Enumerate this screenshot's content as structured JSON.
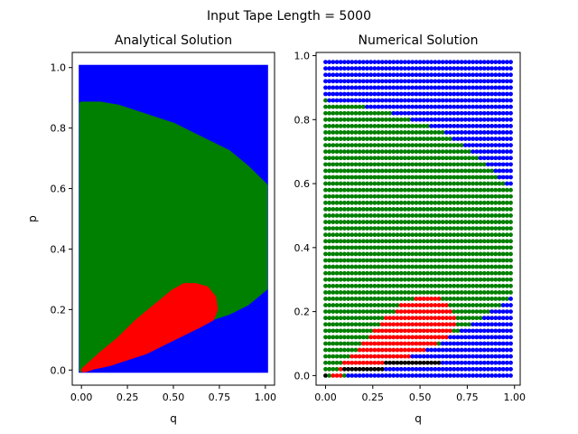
{
  "figure": {
    "suptitle": "Input Tape Length = 5000"
  },
  "chart_data": [
    {
      "type": "area",
      "title": "Analytical Solution",
      "xlabel": "q",
      "ylabel": "p",
      "xlim": [
        -0.05,
        1.05
      ],
      "ylim": [
        -0.05,
        1.05
      ],
      "xticks": [
        "0.00",
        "0.25",
        "0.50",
        "0.75",
        "1.00"
      ],
      "yticks": [
        "0.0",
        "0.2",
        "0.4",
        "0.6",
        "0.8",
        "1.0"
      ],
      "grid": false,
      "colors": {
        "background": "#0000ff",
        "mid": "#008000",
        "low": "#ff0000"
      },
      "regions": {
        "green_upper_boundary": {
          "q": [
            0.0,
            0.1,
            0.2,
            0.3,
            0.4,
            0.5,
            0.6,
            0.7,
            0.8,
            0.9,
            1.0
          ],
          "p": [
            0.88,
            0.88,
            0.87,
            0.85,
            0.83,
            0.81,
            0.78,
            0.75,
            0.72,
            0.67,
            0.61
          ]
        },
        "green_lower_boundary": {
          "q": [
            0.0,
            0.1,
            0.2,
            0.3,
            0.4,
            0.5,
            0.6,
            0.7,
            0.8,
            0.9,
            1.0
          ],
          "p": [
            0.0,
            0.02,
            0.04,
            0.06,
            0.08,
            0.11,
            0.14,
            0.17,
            0.19,
            0.22,
            0.27
          ]
        },
        "red_boundary": {
          "q": [
            0.01,
            0.1,
            0.2,
            0.3,
            0.4,
            0.5,
            0.56,
            0.62,
            0.68,
            0.72,
            0.73,
            0.71,
            0.65,
            0.55,
            0.45,
            0.35,
            0.25,
            0.15,
            0.07,
            0.02
          ],
          "p": [
            0.0,
            0.05,
            0.1,
            0.16,
            0.21,
            0.26,
            0.28,
            0.28,
            0.27,
            0.24,
            0.2,
            0.17,
            0.15,
            0.12,
            0.09,
            0.06,
            0.04,
            0.02,
            0.01,
            0.0
          ]
        }
      }
    },
    {
      "type": "scatter",
      "title": "Numerical Solution",
      "xlabel": "q",
      "ylabel": "",
      "xlim": [
        -0.05,
        1.03
      ],
      "ylim": [
        -0.03,
        1.01
      ],
      "xticks": [
        "0.00",
        "0.25",
        "0.50",
        "0.75",
        "1.00"
      ],
      "yticks": [
        "0.0",
        "0.2",
        "0.4",
        "0.6",
        "0.8",
        "1.0"
      ],
      "grid": false,
      "grid_step": 0.02,
      "grid_range": [
        0.0,
        0.98
      ],
      "colors": {
        "background": "#0000ff",
        "mid": "#008000",
        "low": "#ff0000",
        "zero": "#000000"
      },
      "regions": {
        "green_upper_boundary": {
          "q": [
            0.0,
            0.1,
            0.2,
            0.3,
            0.4,
            0.5,
            0.6,
            0.7,
            0.8,
            0.9,
            0.98
          ],
          "p": [
            0.86,
            0.85,
            0.84,
            0.83,
            0.81,
            0.79,
            0.77,
            0.73,
            0.69,
            0.63,
            0.58
          ]
        },
        "green_lower_boundary": {
          "q": [
            0.0,
            0.1,
            0.2,
            0.3,
            0.4,
            0.5,
            0.6,
            0.7,
            0.8,
            0.9,
            0.98
          ],
          "p": [
            0.0,
            0.0,
            0.02,
            0.04,
            0.06,
            0.08,
            0.1,
            0.14,
            0.17,
            0.21,
            0.25
          ]
        },
        "red_boundary": {
          "q": [
            0.03,
            0.1,
            0.2,
            0.3,
            0.4,
            0.5,
            0.56,
            0.62,
            0.68,
            0.7,
            0.66,
            0.6,
            0.5,
            0.4,
            0.3,
            0.2,
            0.1,
            0.05
          ],
          "p": [
            0.0,
            0.04,
            0.1,
            0.17,
            0.22,
            0.25,
            0.26,
            0.24,
            0.2,
            0.16,
            0.12,
            0.1,
            0.07,
            0.05,
            0.03,
            0.02,
            0.0,
            0.0
          ]
        },
        "black_points": {
          "q": [
            0.0,
            0.1,
            0.12,
            0.14,
            0.16,
            0.18,
            0.2,
            0.22,
            0.24,
            0.26,
            0.28,
            0.3,
            0.32,
            0.34,
            0.36,
            0.38,
            0.4,
            0.42,
            0.44,
            0.46,
            0.48,
            0.5,
            0.52,
            0.54,
            0.56,
            0.58,
            0.6
          ],
          "p": [
            0.0,
            0.02,
            0.02,
            0.02,
            0.02,
            0.02,
            0.02,
            0.02,
            0.02,
            0.02,
            0.02,
            0.02,
            0.04,
            0.04,
            0.04,
            0.04,
            0.04,
            0.04,
            0.04,
            0.04,
            0.04,
            0.04,
            0.04,
            0.04,
            0.04,
            0.04,
            0.04
          ]
        }
      }
    }
  ]
}
